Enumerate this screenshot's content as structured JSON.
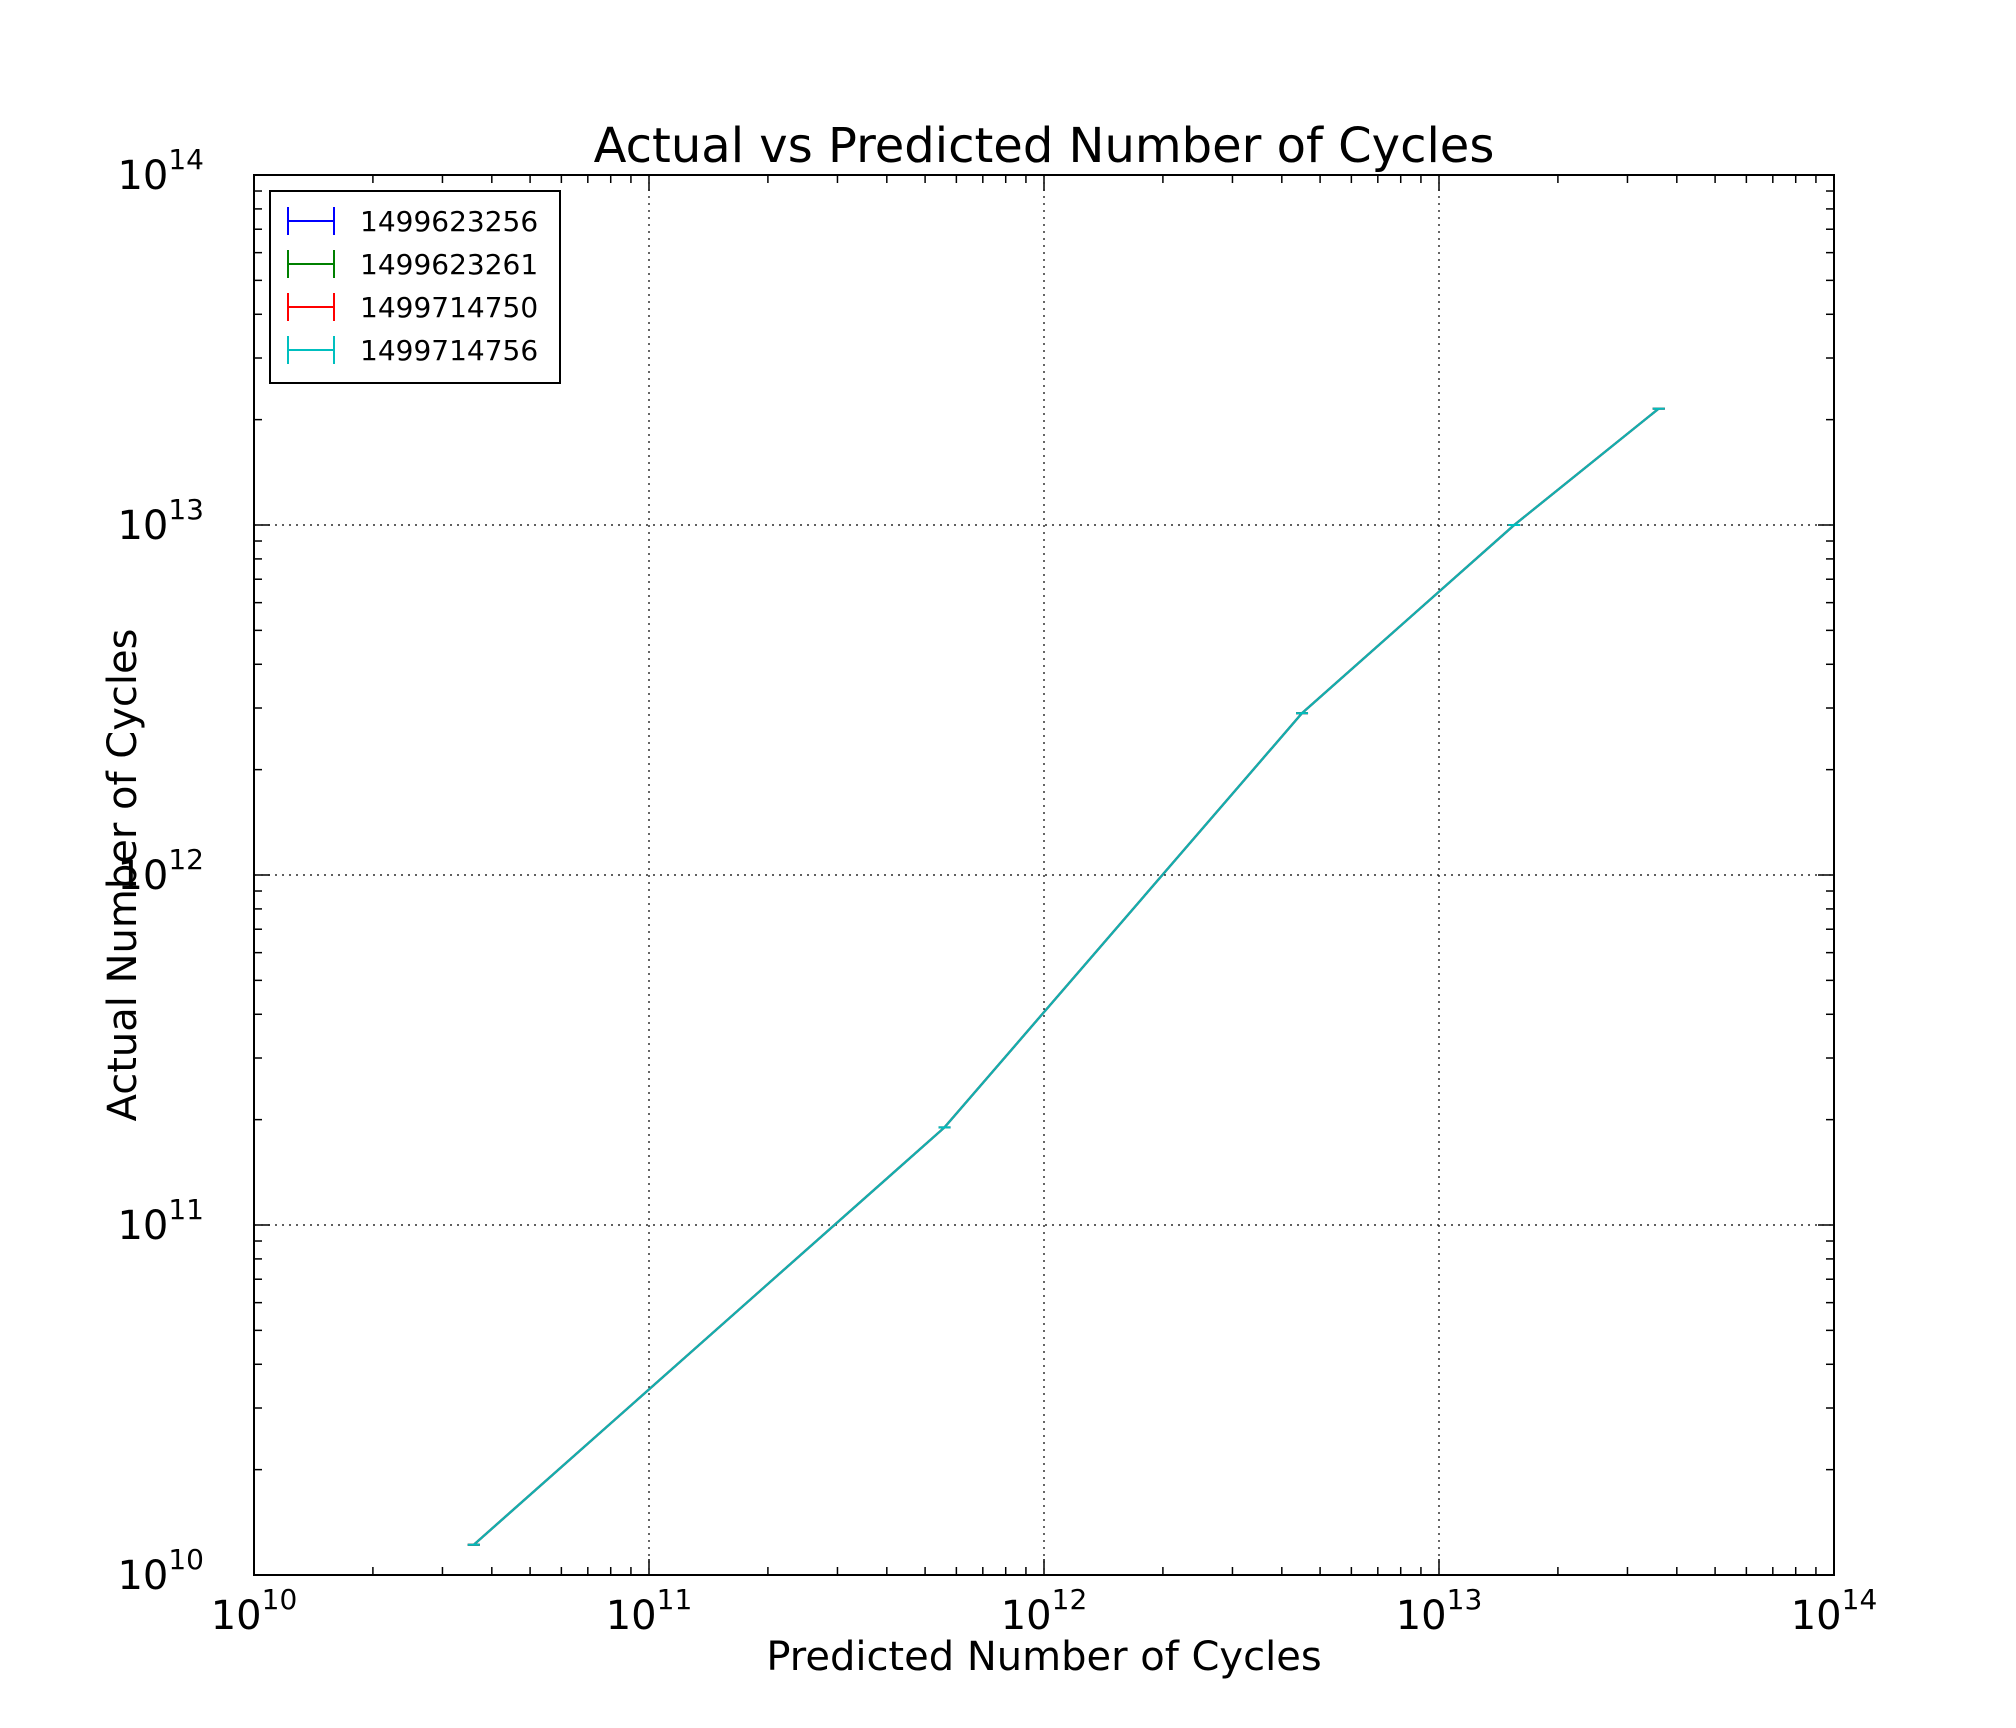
{
  "chart_data": {
    "type": "line",
    "title": "Actual vs Predicted Number of Cycles",
    "xlabel": "Predicted Number of Cycles",
    "ylabel": "Actual Number of Cycles",
    "xscale": "log",
    "yscale": "log",
    "xlim": [
      10000000000.0,
      100000000000000.0
    ],
    "ylim": [
      10000000000.0,
      100000000000000.0
    ],
    "grid": true,
    "legend_position": "upper-left",
    "x_tick_labels": [
      {
        "value": 10000000000.0,
        "base": "10",
        "exp": "10"
      },
      {
        "value": 100000000000.0,
        "base": "10",
        "exp": "11"
      },
      {
        "value": 1000000000000.0,
        "base": "10",
        "exp": "12"
      },
      {
        "value": 10000000000000.0,
        "base": "10",
        "exp": "13"
      },
      {
        "value": 100000000000000.0,
        "base": "10",
        "exp": "14"
      }
    ],
    "y_tick_labels": [
      {
        "value": 10000000000.0,
        "base": "10",
        "exp": "10"
      },
      {
        "value": 100000000000.0,
        "base": "10",
        "exp": "11"
      },
      {
        "value": 1000000000000.0,
        "base": "10",
        "exp": "12"
      },
      {
        "value": 10000000000000.0,
        "base": "10",
        "exp": "13"
      },
      {
        "value": 100000000000000.0,
        "base": "10",
        "exp": "14"
      }
    ],
    "series": [
      {
        "name": "1499623256",
        "color": "#0000ff",
        "x": [
          36000000000.0,
          560000000000.0,
          4500000000000.0,
          15500000000000.0,
          36000000000000.0
        ],
        "y": [
          12200000000.0,
          190000000000.0,
          2900000000000.0,
          10000000000000.0,
          21500000000000.0
        ]
      },
      {
        "name": "1499623261",
        "color": "#008000",
        "x": [
          36000000000.0,
          560000000000.0,
          4500000000000.0,
          15500000000000.0,
          36000000000000.0
        ],
        "y": [
          12200000000.0,
          190000000000.0,
          2900000000000.0,
          10000000000000.0,
          21500000000000.0
        ]
      },
      {
        "name": "1499714750",
        "color": "#ff0000",
        "x": [
          36000000000.0,
          560000000000.0,
          4500000000000.0,
          15500000000000.0,
          36000000000000.0
        ],
        "y": [
          12200000000.0,
          190000000000.0,
          2900000000000.0,
          10000000000000.0,
          21500000000000.0
        ]
      },
      {
        "name": "1499714756",
        "color": "#00bfbf",
        "x": [
          36000000000.0,
          560000000000.0,
          4500000000000.0,
          15500000000000.0,
          36000000000000.0
        ],
        "y": [
          12200000000.0,
          190000000000.0,
          2900000000000.0,
          10000000000000.0,
          21500000000000.0
        ]
      }
    ]
  }
}
